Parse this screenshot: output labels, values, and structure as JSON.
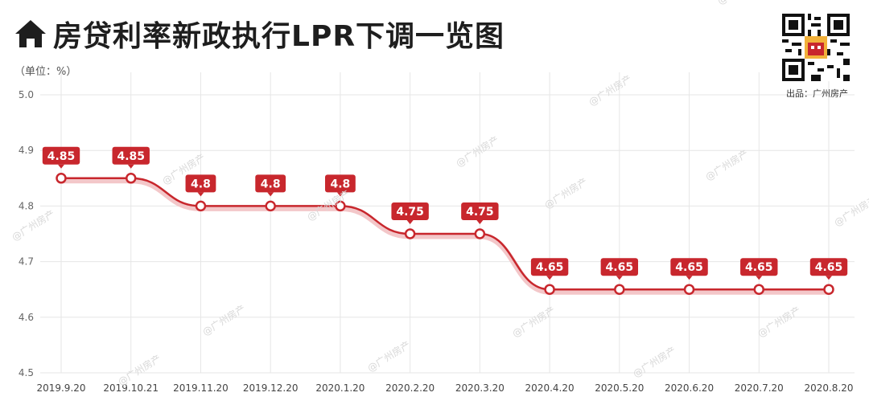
{
  "header": {
    "title": "房贷利率新政执行LPR下调一览图",
    "icon": "home-icon",
    "unit": "（单位：%）",
    "source": "出品：广州房产",
    "qr_icon": "qr-code-icon",
    "watermark": "@广州房产"
  },
  "colors": {
    "line": "#c8272d",
    "label_bg": "#c8272d",
    "label_text": "#ffffff",
    "grid": "#e6e6e6",
    "title": "#1e1e1e"
  },
  "chart_data": {
    "type": "line",
    "x": [
      "2019.9.20",
      "2019.10.21",
      "2019.11.20",
      "2019.12.20",
      "2020.1.20",
      "2020.2.20",
      "2020.3.20",
      "2020.4.20",
      "2020.5.20",
      "2020.6.20",
      "2020.7.20",
      "2020.8.20"
    ],
    "series": [
      {
        "values": [
          4.85,
          4.85,
          4.8,
          4.8,
          4.8,
          4.75,
          4.75,
          4.65,
          4.65,
          4.65,
          4.65,
          4.65
        ]
      }
    ],
    "labels": [
      "4.85",
      "4.85",
      "4.8",
      "4.8",
      "4.8",
      "4.75",
      "4.75",
      "4.65",
      "4.65",
      "4.65",
      "4.65",
      "4.65"
    ],
    "yticks": [
      "5.0",
      "4.9",
      "4.8",
      "4.7",
      "4.6",
      "4.5"
    ],
    "ylim": [
      4.5,
      5.0
    ],
    "grid": true,
    "smooth": true
  }
}
